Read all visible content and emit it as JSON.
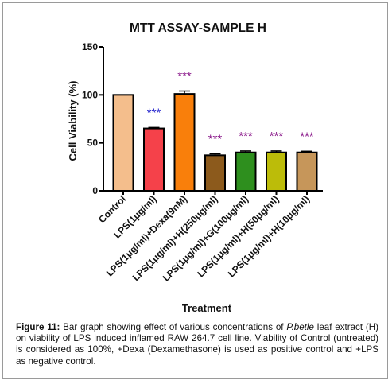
{
  "chart_data": {
    "type": "bar",
    "title": "MTT ASSAY-SAMPLE H",
    "xlabel": "Treatment",
    "ylabel": "Cell Viability (%)",
    "ylim": [
      0,
      150
    ],
    "yticks": [
      0,
      50,
      100,
      150
    ],
    "grid": false,
    "categories": [
      "Control",
      "LPS(1μg/ml)",
      "LPS(1μg/ml)+Dexa(9nM)",
      "LPS(1μg/ml)+H(250μg/ml)",
      "LPS(1μg/ml)+G(100μg/ml)",
      "LPS(1μg/ml)+H(50μg/ml)",
      "LPS(1μg/ml)+H(10μg/ml)"
    ],
    "values": [
      100,
      65,
      101,
      37,
      40,
      40,
      40
    ],
    "errors": [
      0,
      1,
      3,
      1.5,
      1.5,
      1.5,
      1.2
    ],
    "colors": [
      "#f4be8c",
      "#f5414a",
      "#f97f0b",
      "#8c5a1c",
      "#2e8f1e",
      "#bcbc09",
      "#c6965a"
    ],
    "annotations": [
      "",
      "***",
      "***",
      "***",
      "***",
      "***",
      "***"
    ],
    "annotation_colors": [
      "",
      "#2222cc",
      "#8b1a8b",
      "#8b1a8b",
      "#8b1a8b",
      "#8b1a8b",
      "#8b1a8b"
    ]
  },
  "caption": {
    "label": "Figure 11:",
    "part1": " Bar graph showing effect of various concentrations of ",
    "species": "P.betle",
    "part2": " leaf extract (H) on viability of LPS induced inflamed RAW 264.7 cell line. Viability of Control (untreated) is considered as 100%, +Dexa (Dexamethasone) is used as positive control and +LPS as negative control."
  }
}
